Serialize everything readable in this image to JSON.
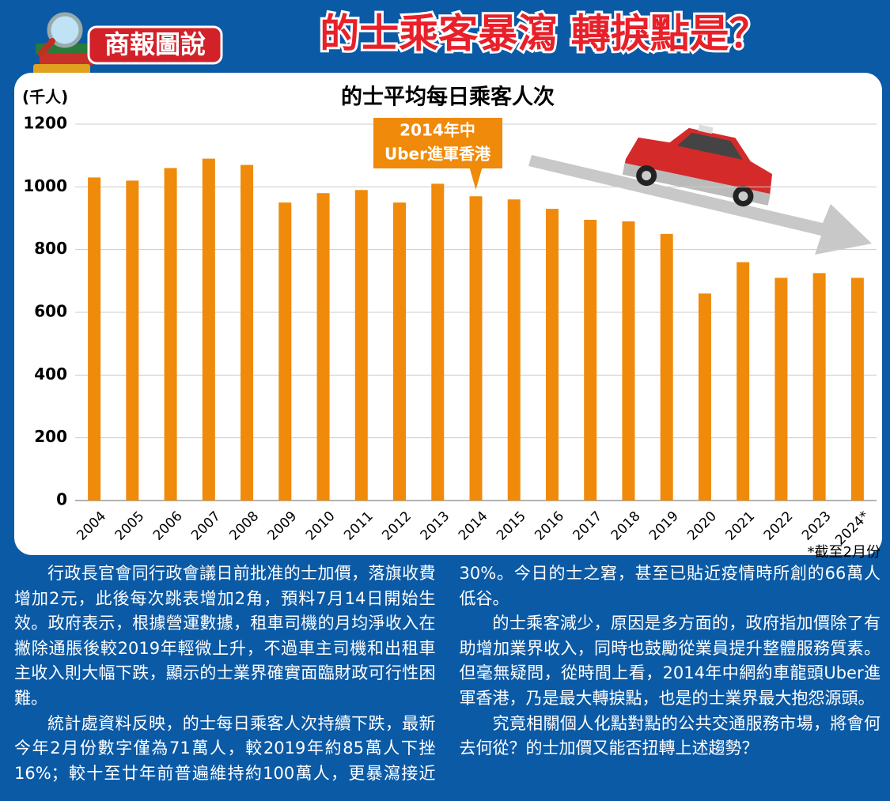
{
  "header": {
    "badge": "商報圖說",
    "headline": "的士乘客暴瀉 轉捩點是？"
  },
  "chart_data": {
    "type": "bar",
    "title": "的士平均每日乘客人次",
    "y_label": "(千人)",
    "categories": [
      "2004",
      "2005",
      "2006",
      "2007",
      "2008",
      "2009",
      "2010",
      "2011",
      "2012",
      "2013",
      "2014",
      "2015",
      "2016",
      "2017",
      "2018",
      "2019",
      "2020",
      "2021",
      "2022",
      "2023",
      "2024*"
    ],
    "values": [
      1030,
      1020,
      1060,
      1090,
      1070,
      950,
      980,
      990,
      950,
      1010,
      970,
      960,
      930,
      895,
      890,
      850,
      660,
      760,
      710,
      725,
      710
    ],
    "color": "#f08a0a",
    "ylim": [
      0,
      1200
    ],
    "yticks": [
      0,
      200,
      400,
      600,
      800,
      1000,
      1200
    ],
    "grid": true,
    "annotation": [
      "2014年中",
      "Uber進軍香港"
    ],
    "footnote": "*截至2月份"
  },
  "article": {
    "paragraphs": [
      "行政長官會同行政會議日前批准的士加價，落旗收費增加2元，此後每次跳表增加2角，預料7月14日開始生效。政府表示，根據營運數據，租車司機的月均淨收入在撇除通脹後較2019年輕微上升，不過車主司機和出租車主收入則大幅下跌，顯示的士業界確實面臨財政可行性困難。",
      "統計處資料反映，的士每日乘客人次持續下跌，最新今年2月份數字僅為71萬人，較2019年約85萬人下挫16%；較十至廿年前普遍維持約100萬人，更暴瀉接近30%。今日的士之窘，甚至已貼近疫情時所創的66萬人低谷。",
      "的士乘客減少，原因是多方面的，政府指加價除了有助增加業界收入，同時也鼓勵從業員提升整體服務質素。但毫無疑問，從時間上看，2014年中網約車龍頭Uber進軍香港，乃是最大轉捩點，也是的士業界最大抱怨源頭。",
      "究竟相關個人化點對點的公共交通服務市場，將會何去何從？的士加價又能否扭轉上述趨勢？"
    ]
  }
}
